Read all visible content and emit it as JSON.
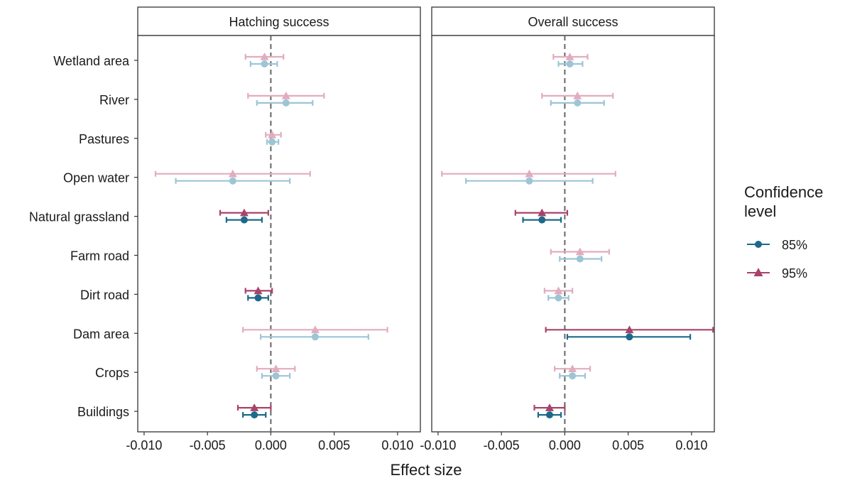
{
  "chart_data": {
    "type": "scatter",
    "subtype": "forest-plot-errorbars",
    "facets": [
      "Hatching success",
      "Overall success"
    ],
    "categories": [
      "Wetland area",
      "River",
      "Pastures",
      "Open water",
      "Natural grassland",
      "Farm road",
      "Dirt road",
      "Dam area",
      "Crops",
      "Buildings"
    ],
    "xlabel": "Effect size",
    "ylabel": "",
    "xlim": [
      -0.0105,
      0.0118
    ],
    "xticks": [
      -0.01,
      -0.005,
      0.0,
      0.005,
      0.01
    ],
    "xtick_labels": [
      "-0.010",
      "-0.005",
      "0.000",
      "0.005",
      "0.010"
    ],
    "reference_line": 0,
    "grid": false,
    "legend": {
      "title": "Confidence level",
      "position": "right",
      "entries": [
        {
          "label": "85%",
          "marker": "circle",
          "color": "#1b6a8a"
        },
        {
          "label": "95%",
          "marker": "triangle",
          "color": "#a8436a"
        }
      ]
    },
    "colors": {
      "ci85": "#1b6a8a",
      "ci95": "#a8436a",
      "ci85_faded": "#9cc5d6",
      "ci95_faded": "#e2acbf",
      "zero_line": "#666666"
    },
    "series": [
      {
        "facet": "Hatching success",
        "name": "85%",
        "estimate": [
          -0.0005,
          0.0012,
          0.0001,
          -0.003,
          -0.0021,
          null,
          -0.001,
          0.0035,
          0.0004,
          -0.0013
        ],
        "lower": [
          -0.0016,
          -0.0011,
          -0.0003,
          -0.0075,
          -0.0035,
          null,
          -0.0018,
          -0.0008,
          -0.0007,
          -0.0022
        ],
        "upper": [
          0.0005,
          0.0033,
          0.0006,
          0.0015,
          -0.0007,
          null,
          -0.0002,
          0.0077,
          0.0015,
          -0.0004
        ],
        "significant": [
          false,
          false,
          false,
          false,
          true,
          null,
          true,
          false,
          false,
          true
        ]
      },
      {
        "facet": "Hatching success",
        "name": "95%",
        "estimate": [
          -0.0005,
          0.0012,
          0.0001,
          -0.003,
          -0.0021,
          null,
          -0.001,
          0.0035,
          0.0004,
          -0.0013
        ],
        "lower": [
          -0.002,
          -0.0018,
          -0.0004,
          -0.0091,
          -0.004,
          null,
          -0.002,
          -0.0022,
          -0.0011,
          -0.0026
        ],
        "upper": [
          0.001,
          0.0042,
          0.0008,
          0.0031,
          -0.0002,
          null,
          0.0001,
          0.0092,
          0.0019,
          0.0
        ],
        "significant": [
          false,
          false,
          false,
          false,
          true,
          null,
          true,
          false,
          false,
          true
        ]
      },
      {
        "facet": "Overall success",
        "name": "85%",
        "estimate": [
          0.0004,
          0.001,
          null,
          -0.0028,
          -0.0018,
          0.0012,
          -0.0005,
          0.0051,
          0.0006,
          -0.0012
        ],
        "lower": [
          -0.0005,
          -0.0011,
          null,
          -0.0078,
          -0.0033,
          -0.0004,
          -0.0013,
          0.0002,
          -0.0004,
          -0.0021
        ],
        "upper": [
          0.0014,
          0.0031,
          null,
          0.0022,
          -0.0003,
          0.0029,
          0.0003,
          0.0099,
          0.0016,
          -0.0003
        ],
        "significant": [
          false,
          false,
          null,
          false,
          true,
          false,
          false,
          true,
          false,
          true
        ]
      },
      {
        "facet": "Overall success",
        "name": "95%",
        "estimate": [
          0.0004,
          0.001,
          null,
          -0.0028,
          -0.0018,
          0.0012,
          -0.0005,
          0.0051,
          0.0006,
          -0.0012
        ],
        "lower": [
          -0.0009,
          -0.0018,
          null,
          -0.0097,
          -0.0039,
          -0.0011,
          -0.0016,
          -0.0015,
          -0.0008,
          -0.0024
        ],
        "upper": [
          0.0018,
          0.0038,
          null,
          0.004,
          0.0002,
          0.0035,
          0.0006,
          0.0117,
          0.002,
          0.0
        ],
        "significant": [
          false,
          false,
          null,
          false,
          true,
          false,
          false,
          true,
          false,
          true
        ]
      }
    ]
  }
}
